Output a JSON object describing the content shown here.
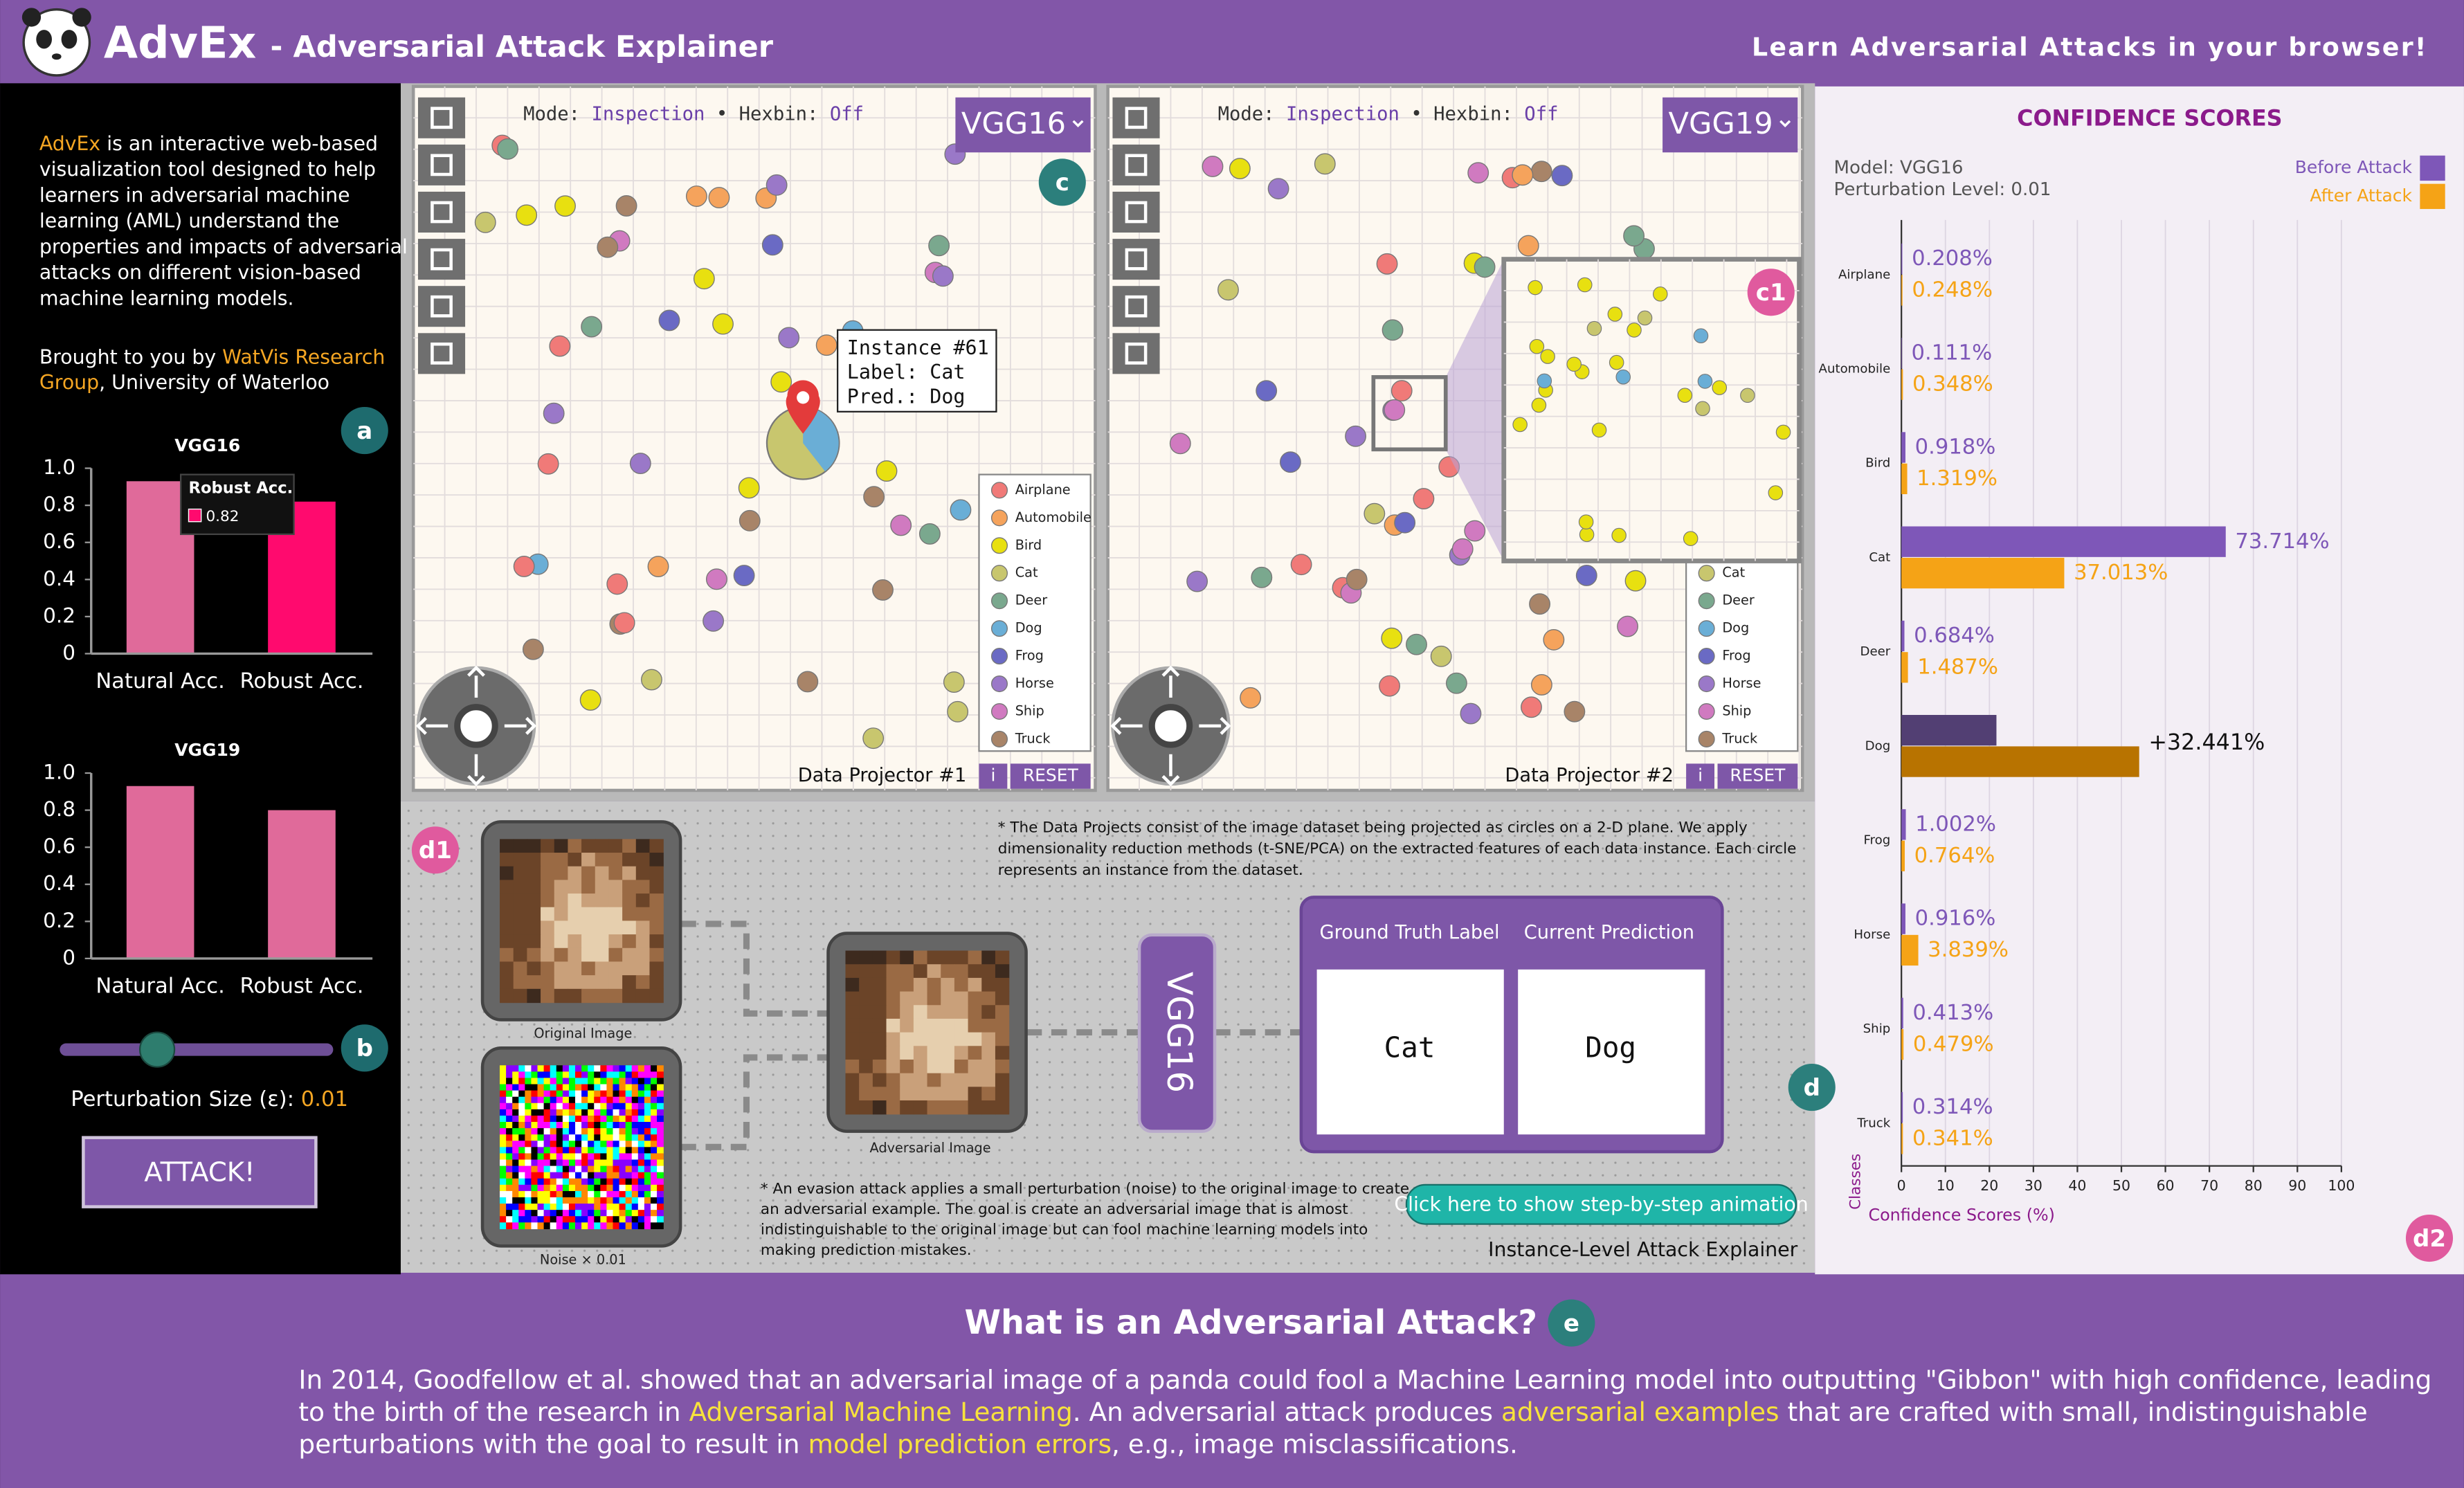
{
  "header": {
    "logo": "AdvEx",
    "title": "- Adversarial Attack Explainer",
    "tagline": "Learn Adversarial Attacks in your browser!"
  },
  "sidebar": {
    "description": [
      [
        {
          "text": "AdvEx",
          "highlight": true
        },
        {
          "text": " is an interactive web-based"
        }
      ],
      [
        {
          "text": "visualization tool designed to help"
        }
      ],
      [
        {
          "text": "learners in adversarial machine"
        }
      ],
      [
        {
          "text": "learning (AML) understand the"
        }
      ],
      [
        {
          "text": "properties and impacts of adversarial"
        }
      ],
      [
        {
          "text": "attacks on different vision-based"
        }
      ],
      [
        {
          "text": "machine learning models."
        }
      ]
    ],
    "credit": [
      [
        {
          "text": "Brought to you by "
        },
        {
          "text": "WatVis Research",
          "highlight": true
        }
      ],
      [
        {
          "text": "Group",
          "highlight": true
        },
        {
          "text": ", University of Waterloo"
        }
      ]
    ],
    "highlight_color": "#f5a623",
    "perturbation_label": "Perturbation Size (ε): ",
    "perturbation_value": "0.01",
    "attack_button": "ATTACK!"
  },
  "badges": {
    "a": "a",
    "b": "b",
    "c": "c",
    "c1": "c1",
    "d": "d",
    "d1": "d1",
    "d2": "d2",
    "e": "e"
  },
  "classes": [
    {
      "name": "Airplane",
      "color": "#f07a78"
    },
    {
      "name": "Automobile",
      "color": "#f5a35c"
    },
    {
      "name": "Bird",
      "color": "#e8e010"
    },
    {
      "name": "Cat",
      "color": "#c8c66e"
    },
    {
      "name": "Deer",
      "color": "#7aa88e"
    },
    {
      "name": "Dog",
      "color": "#6aaed6"
    },
    {
      "name": "Frog",
      "color": "#6a6ac4"
    },
    {
      "name": "Horse",
      "color": "#9a78c8"
    },
    {
      "name": "Ship",
      "color": "#d07ac0"
    },
    {
      "name": "Truck",
      "color": "#a88468"
    }
  ],
  "projectors": [
    {
      "mode_label": "Mode: ",
      "mode": "Inspection",
      "separator": " • ",
      "hexbin_label": "Hexbin: ",
      "hexbin": "Off",
      "model": "VGG16",
      "name": "Data Projector #1",
      "info": "i",
      "reset": "RESET",
      "tooltip": [
        "Instance #61",
        "Label: Cat",
        "Pred.: Dog"
      ]
    },
    {
      "mode_label": "Mode: ",
      "mode": "Inspection",
      "separator": " • ",
      "hexbin_label": "Hexbin: ",
      "hexbin": "Off",
      "model": "VGG19",
      "name": "Data Projector #2",
      "info": "i",
      "reset": "RESET"
    }
  ],
  "explainer": {
    "original_label": "Original Image",
    "adversarial_label": "Adversarial Image",
    "noise_label": "Noise × 0.01",
    "model": "VGG16",
    "ground_truth_header": "Ground Truth Label",
    "prediction_header": "Current Prediction",
    "ground_truth": "Cat",
    "prediction": "Dog",
    "projector_note": [
      "* The Data Projects consist of the image dataset being projected as circles on a 2-D plane. We apply",
      "dimensionality reduction methods (t-SNE/PCA) on the extracted features of each data instance. Each circle",
      "represents an instance from the dataset."
    ],
    "attack_note": [
      "* An evasion attack applies a small perturbation (noise) to the original image to create",
      "an adversarial example. The goal is create an adversarial image that is almost",
      "indistinguishable to the original image but can fool machine learning models into",
      "making prediction mistakes."
    ],
    "animation_button": "Click here to show step-by-step animation",
    "name": "Instance-Level Attack Explainer"
  },
  "about": {
    "heading": "What is an Adversarial Attack?",
    "highlight_color": "#f7e23c",
    "lines": [
      [
        {
          "text": "In 2014, Goodfellow et al. showed that an adversarial image of a panda could fool a Machine Learning model into outputting \"Gibbon\" with high confidence, leading"
        }
      ],
      [
        {
          "text": "to the birth of the research in "
        },
        {
          "text": "Adversarial Machine Learning",
          "highlight": true
        },
        {
          "text": ". An adversarial attack produces "
        },
        {
          "text": "adversarial examples",
          "highlight": true
        },
        {
          "text": " that are crafted with small, indistinguishable"
        }
      ],
      [
        {
          "text": "perturbations with the goal to result in "
        },
        {
          "text": "model prediction errors",
          "highlight": true
        },
        {
          "text": ", e.g., image misclassifications."
        }
      ]
    ]
  },
  "chart_data": [
    {
      "type": "bar",
      "title": "VGG16",
      "categories": [
        "Natural Acc.",
        "Robust Acc."
      ],
      "values": [
        0.93,
        0.82
      ],
      "value_labels": [
        null,
        "0.82"
      ],
      "tooltip": "Robust Acc.",
      "colors": [
        "#e06a9a",
        "#ff0a6e"
      ],
      "ylim": [
        0,
        1
      ],
      "yticks": [
        0,
        0.2,
        0.4,
        0.6,
        0.8,
        {
          "value": 1,
          "label": "1.0"
        }
      ]
    },
    {
      "type": "bar",
      "title": "VGG19",
      "categories": [
        "Natural Acc.",
        "Robust Acc."
      ],
      "values": [
        0.93,
        0.8
      ],
      "colors": [
        "#e06a9a",
        "#e06a9a"
      ],
      "ylim": [
        0,
        1
      ],
      "yticks": [
        0,
        0.2,
        0.4,
        0.6,
        0.8,
        {
          "value": 1,
          "label": "1.0"
        }
      ]
    },
    {
      "type": "hbar",
      "title": "CONFIDENCE SCORES",
      "meta": [
        "Model: VGG16",
        "Perturbation Level: 0.01"
      ],
      "categories": [
        "Airplane",
        "Automobile",
        "Bird",
        "Cat",
        "Deer",
        "Dog",
        "Frog",
        "Horse",
        "Ship",
        "Truck"
      ],
      "series": [
        {
          "name": "Before Attack",
          "color": "#7e57b8",
          "values": [
            0.208,
            0.111,
            0.918,
            73.714,
            0.684,
            21.6,
            1.002,
            0.916,
            0.413,
            0.314
          ],
          "value_labels": [
            "0.208%",
            "0.111%",
            "0.918%",
            "73.714%",
            "0.684%",
            null,
            "1.002%",
            "0.916%",
            "0.413%",
            "0.314%"
          ]
        },
        {
          "name": "After Attack",
          "color": "#f5a316",
          "values": [
            0.248,
            0.348,
            1.319,
            37.013,
            1.487,
            54.041,
            0.764,
            3.839,
            0.479,
            0.341
          ],
          "value_labels": [
            "0.248%",
            "0.348%",
            "1.319%",
            "37.013%",
            "1.487%",
            null,
            "0.764%",
            "3.839%",
            "0.479%",
            "0.341%"
          ]
        }
      ],
      "highlight": {
        "category": "Dog",
        "colors": [
          "#523f73",
          "#b87300"
        ],
        "annotation": "+32.441%"
      },
      "xlim": [
        0,
        100
      ],
      "xticks": [
        0,
        10,
        20,
        30,
        40,
        50,
        60,
        70,
        80,
        90,
        100
      ],
      "xlabel": "Confidence Scores (%)",
      "ylabel": "Classes",
      "grid": true
    }
  ]
}
